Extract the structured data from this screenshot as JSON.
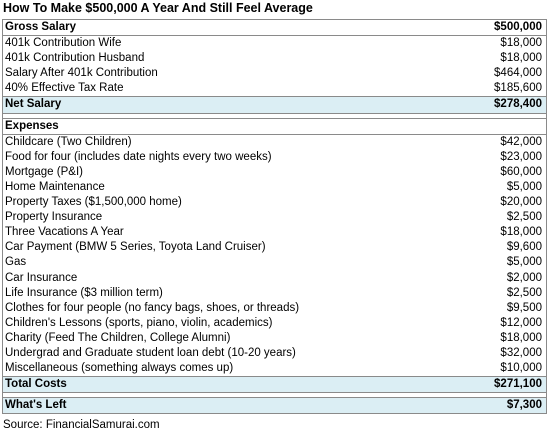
{
  "title": "How To Make $500,000 A Year And Still Feel Average",
  "gross": {
    "header": {
      "label": "Gross Salary",
      "value": "$500,000"
    },
    "rows": [
      {
        "label": "401k Contribution Wife",
        "value": "$18,000"
      },
      {
        "label": "401k Contribution Husband",
        "value": "$18,000"
      },
      {
        "label": "Salary After 401k Contribution",
        "value": "$464,000"
      },
      {
        "label": "40% Effective Tax Rate",
        "value": "$185,600"
      }
    ],
    "net": {
      "label": "Net Salary",
      "value": "$278,400"
    }
  },
  "expenses": {
    "header": "Expenses",
    "rows": [
      {
        "label": "Childcare (Two Children)",
        "value": "$42,000"
      },
      {
        "label": "Food for four (includes date nights every two weeks)",
        "value": "$23,000"
      },
      {
        "label": "Mortgage (P&I)",
        "value": "$60,000"
      },
      {
        "label": "Home Maintenance",
        "value": "$5,000"
      },
      {
        "label": "Property Taxes ($1,500,000 home)",
        "value": "$20,000"
      },
      {
        "label": "Property Insurance",
        "value": "$2,500"
      },
      {
        "label": "Three Vacations A Year",
        "value": "$18,000"
      },
      {
        "label": "Car Payment (BMW 5 Series, Toyota Land Cruiser)",
        "value": "$9,600"
      },
      {
        "label": "Gas",
        "value": "$5,000"
      },
      {
        "label": "Car Insurance",
        "value": "$2,000"
      },
      {
        "label": "Life Insurance ($3 million term)",
        "value": "$2,500"
      },
      {
        "label": "Clothes for four people (no fancy bags, shoes, or threads)",
        "value": "$9,500"
      },
      {
        "label": "Children's Lessons (sports, piano, violin, academics)",
        "value": "$12,000"
      },
      {
        "label": "Charity (Feed The Children, College Alumni)",
        "value": "$18,000"
      },
      {
        "label": "Undergrad and Graduate student loan debt (10-20 years)",
        "value": "$32,000"
      },
      {
        "label": "Miscellaneous (something always comes up)",
        "value": "$10,000"
      }
    ],
    "total": {
      "label": "Total Costs",
      "value": "$271,100"
    }
  },
  "left": {
    "label": "What's Left",
    "value": "$7,300"
  },
  "source": "Source: FinancialSamurai.com"
}
